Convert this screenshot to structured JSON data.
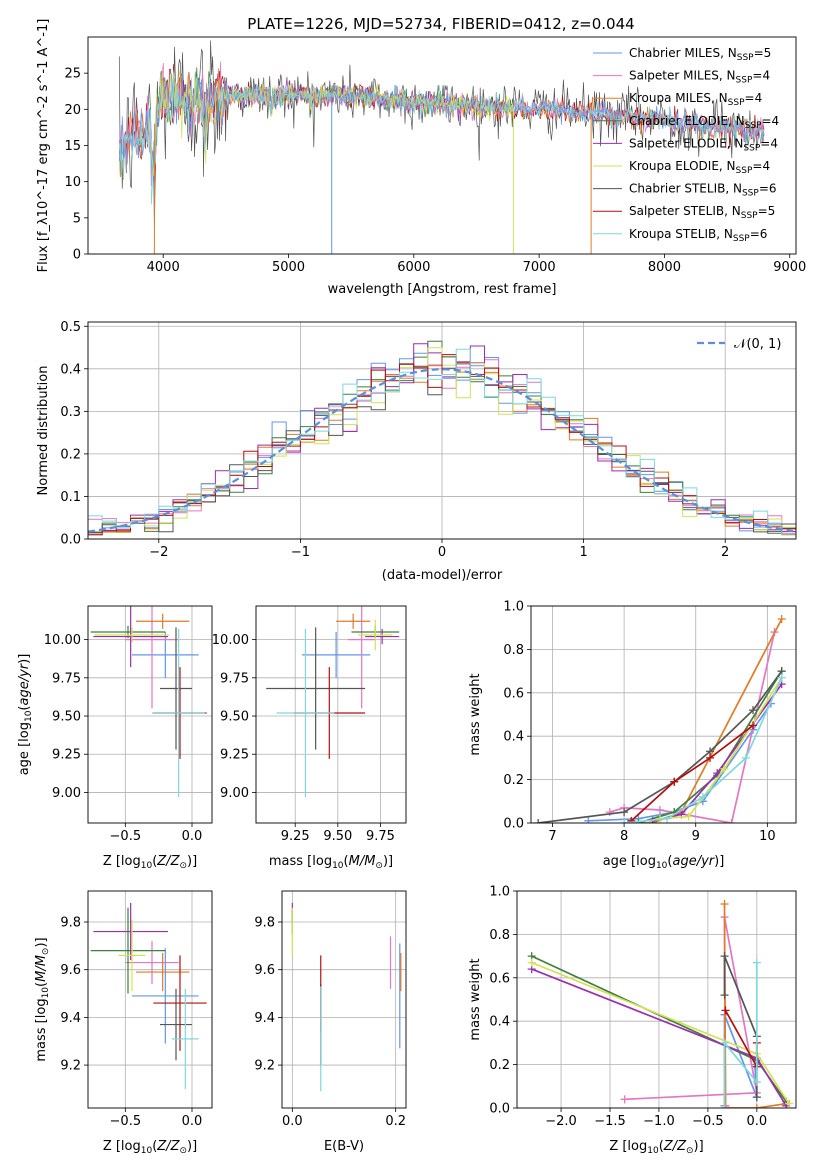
{
  "figure_title": "PLATE=1226, MJD=52734, FIBERID=0412, z=0.044",
  "colors": {
    "Chabrier MILES": "#6495ed",
    "Salpeter MILES": "#e377c2",
    "Kroupa MILES": "#e07b28",
    "Chabrier ELODIE": "#3f7f3f",
    "Salpeter ELODIE": "#9b2fae",
    "Kroupa ELODIE": "#d4e157",
    "Chabrier STELIB": "#555555",
    "Salpeter STELIB": "#b31010",
    "Kroupa STELIB": "#7fd8dc"
  },
  "chart_data": [
    {
      "id": "spectrum",
      "type": "line",
      "xlabel": "wavelength [Angstrom, rest frame]",
      "ylabel": "Flux [f_λ10^-17 erg cm^-2 s^-1 A^-1]",
      "xlim": [
        3400,
        9050
      ],
      "ylim": [
        0,
        30
      ],
      "xticks": [
        4000,
        5000,
        6000,
        7000,
        8000,
        9000
      ],
      "yticks": [
        0,
        5,
        10,
        15,
        20,
        25
      ],
      "grid": false,
      "legend_position": "top-right",
      "legend": [
        {
          "name": "Chabrier MILES",
          "label": "Chabrier MILES, N",
          "sub": "SSP",
          "suffix": "=5"
        },
        {
          "name": "Salpeter MILES",
          "label": "Salpeter MILES, N",
          "sub": "SSP",
          "suffix": "=4"
        },
        {
          "name": "Kroupa MILES",
          "label": "Kroupa MILES, N",
          "sub": "SSP",
          "suffix": "=4"
        },
        {
          "name": "Chabrier ELODIE",
          "label": "Chabrier ELODIE, N",
          "sub": "SSP",
          "suffix": "=4"
        },
        {
          "name": "Salpeter ELODIE",
          "label": "Salpeter ELODIE, N",
          "sub": "SSP",
          "suffix": "=4"
        },
        {
          "name": "Kroupa ELODIE",
          "label": "Kroupa ELODIE, N",
          "sub": "SSP",
          "suffix": "=4"
        },
        {
          "name": "Chabrier STELIB",
          "label": "Chabrier STELIB, N",
          "sub": "SSP",
          "suffix": "=6"
        },
        {
          "name": "Salpeter STELIB",
          "label": "Salpeter STELIB, N",
          "sub": "SSP",
          "suffix": "=5"
        },
        {
          "name": "Kroupa STELIB",
          "label": "Kroupa STELIB, N",
          "sub": "SSP",
          "suffix": "=6"
        }
      ],
      "data_envelope": {
        "wavelength": [
          3650,
          3800,
          3930,
          4000,
          4300,
          4500,
          5000,
          5500,
          6000,
          6500,
          7000,
          7400,
          8000,
          8500,
          8800
        ],
        "flux": [
          14,
          17,
          18,
          22,
          21,
          22,
          22,
          22,
          21,
          20.5,
          20,
          19.5,
          18.5,
          17.5,
          17
        ]
      }
    },
    {
      "id": "residuals",
      "type": "histogram",
      "xlabel": "(data-model)/error",
      "ylabel": "Normed distribution",
      "xlim": [
        -2.5,
        2.5
      ],
      "ylim": [
        0,
        0.51
      ],
      "xticks": [
        -2,
        -1,
        0,
        1,
        2
      ],
      "yticks": [
        0.0,
        0.1,
        0.2,
        0.3,
        0.4,
        0.5
      ],
      "grid": true,
      "legend_position": "top-right",
      "legend": [
        {
          "name": "N(0,1)",
          "label": "𝒩(0, 1)"
        }
      ],
      "bin_width": 0.1
    },
    {
      "id": "age_vs_Z",
      "type": "errorbar",
      "xlabel": "Z [log10(Z/Z⊙)]",
      "ylabel": "age [log10(age/yr)]",
      "xlim": [
        -0.78,
        0.15
      ],
      "ylim": [
        8.8,
        10.22
      ],
      "xticks": [
        -0.5,
        0.0
      ],
      "yticks": [
        9.0,
        9.25,
        9.5,
        9.75,
        10.0
      ],
      "grid": true,
      "points": [
        {
          "series": "Chabrier MILES",
          "x": -0.2,
          "y": 9.9,
          "xerr": 0.25,
          "yerr": 0.15
        },
        {
          "series": "Salpeter MILES",
          "x": -0.3,
          "y": 10.0,
          "xerr": 0.2,
          "yerr": 0.45
        },
        {
          "series": "Kroupa MILES",
          "x": -0.22,
          "y": 10.12,
          "xerr": 0.2,
          "yerr": 0.05
        },
        {
          "series": "Chabrier ELODIE",
          "x": -0.48,
          "y": 10.05,
          "xerr": 0.28,
          "yerr": 0.04
        },
        {
          "series": "Salpeter ELODIE",
          "x": -0.46,
          "y": 10.02,
          "xerr": 0.28,
          "yerr": 0.2
        },
        {
          "series": "Kroupa ELODIE",
          "x": -0.45,
          "y": 10.03,
          "xerr": 0.28,
          "yerr": 0.05
        },
        {
          "series": "Chabrier STELIB",
          "x": -0.12,
          "y": 9.68,
          "xerr": 0.12,
          "yerr": 0.4
        },
        {
          "series": "Salpeter STELIB",
          "x": -0.09,
          "y": 9.52,
          "xerr": 0.2,
          "yerr": 0.3
        },
        {
          "series": "Kroupa STELIB",
          "x": -0.1,
          "y": 9.52,
          "xerr": 0.2,
          "yerr": 0.55
        }
      ]
    },
    {
      "id": "age_vs_mass",
      "type": "errorbar",
      "xlabel": "mass [log10(M/M⊙)]",
      "ylabel": "",
      "xlim": [
        9.02,
        9.9
      ],
      "ylim": [
        8.8,
        10.22
      ],
      "xticks": [
        9.25,
        9.5,
        9.75
      ],
      "yticks": [
        9.0,
        9.25,
        9.5,
        9.75,
        10.0
      ],
      "grid": true,
      "points": [
        {
          "series": "Chabrier MILES",
          "x": 9.49,
          "y": 9.9,
          "xerr": 0.2,
          "yerr": 0.15
        },
        {
          "series": "Salpeter MILES",
          "x": 9.64,
          "y": 10.0,
          "xerr": 0.08,
          "yerr": 0.45
        },
        {
          "series": "Kroupa MILES",
          "x": 9.59,
          "y": 10.12,
          "xerr": 0.1,
          "yerr": 0.05
        },
        {
          "series": "Chabrier ELODIE",
          "x": 9.72,
          "y": 10.05,
          "xerr": 0.14,
          "yerr": 0.04
        },
        {
          "series": "Salpeter ELODIE",
          "x": 9.76,
          "y": 10.02,
          "xerr": 0.1,
          "yerr": 0.05
        },
        {
          "series": "Kroupa ELODIE",
          "x": 9.72,
          "y": 10.03,
          "xerr": 0.1,
          "yerr": 0.1
        },
        {
          "series": "Chabrier STELIB",
          "x": 9.37,
          "y": 9.68,
          "xerr": 0.29,
          "yerr": 0.4
        },
        {
          "series": "Salpeter STELIB",
          "x": 9.45,
          "y": 9.52,
          "xerr": 0.21,
          "yerr": 0.3
        },
        {
          "series": "Kroupa STELIB",
          "x": 9.31,
          "y": 9.52,
          "xerr": 0.17,
          "yerr": 0.55
        }
      ]
    },
    {
      "id": "weight_vs_age",
      "type": "line",
      "xlabel": "age [log10(age/yr)]",
      "ylabel": "mass weight",
      "xlim": [
        6.7,
        10.4
      ],
      "ylim": [
        0,
        1
      ],
      "xticks": [
        7,
        8,
        9,
        10
      ],
      "yticks": [
        0.0,
        0.2,
        0.4,
        0.6,
        0.8,
        1.0
      ],
      "grid": true,
      "series": [
        {
          "name": "Chabrier MILES",
          "x": [
            7.5,
            8.2,
            8.7,
            9.1,
            9.8,
            10.05
          ],
          "y": [
            0.01,
            0.02,
            0.05,
            0.1,
            0.43,
            0.55
          ]
        },
        {
          "name": "Salpeter MILES",
          "x": [
            7.8,
            8.0,
            8.5,
            9.5,
            10.1
          ],
          "y": [
            0.05,
            0.07,
            0.06,
            0.0,
            0.88
          ]
        },
        {
          "name": "Kroupa MILES",
          "x": [
            8.0,
            8.4,
            8.8,
            10.2
          ],
          "y": [
            0.0,
            0.0,
            0.05,
            0.94
          ]
        },
        {
          "name": "Chabrier ELODIE",
          "x": [
            8.2,
            8.7,
            9.3,
            10.2
          ],
          "y": [
            0.0,
            0.05,
            0.22,
            0.7
          ]
        },
        {
          "name": "Salpeter ELODIE",
          "x": [
            8.4,
            8.8,
            9.3,
            10.2
          ],
          "y": [
            0.01,
            0.04,
            0.23,
            0.64
          ]
        },
        {
          "name": "Kroupa ELODIE",
          "x": [
            8.5,
            8.9,
            9.4,
            10.2
          ],
          "y": [
            0.02,
            0.03,
            0.25,
            0.67
          ]
        },
        {
          "name": "Chabrier STELIB",
          "x": [
            6.8,
            8.0,
            8.7,
            9.2,
            9.8,
            10.2
          ],
          "y": [
            0.0,
            0.05,
            0.19,
            0.33,
            0.52,
            0.7
          ]
        },
        {
          "name": "Salpeter STELIB",
          "x": [
            8.1,
            8.7,
            9.2,
            9.8
          ],
          "y": [
            0.01,
            0.19,
            0.3,
            0.45
          ]
        },
        {
          "name": "Kroupa STELIB",
          "x": [
            8.0,
            8.6,
            9.1,
            9.7,
            10.2
          ],
          "y": [
            0.0,
            0.02,
            0.12,
            0.3,
            0.67
          ]
        }
      ]
    },
    {
      "id": "mass_vs_Z",
      "type": "errorbar",
      "xlabel": "Z [log10(Z/Z⊙)]",
      "ylabel": "mass [log10(M/M⊙)]",
      "xlim": [
        -0.78,
        0.15
      ],
      "ylim": [
        9.02,
        9.93
      ],
      "xticks": [
        -0.5,
        0.0
      ],
      "yticks": [
        9.2,
        9.4,
        9.6,
        9.8
      ],
      "grid": true,
      "points": [
        {
          "series": "Chabrier MILES",
          "x": -0.2,
          "y": 9.49,
          "xerr": 0.25,
          "yerr": 0.2
        },
        {
          "series": "Salpeter MILES",
          "x": -0.3,
          "y": 9.63,
          "xerr": 0.2,
          "yerr": 0.09
        },
        {
          "series": "Kroupa MILES",
          "x": -0.22,
          "y": 9.59,
          "xerr": 0.2,
          "yerr": 0.08
        },
        {
          "series": "Chabrier ELODIE",
          "x": -0.48,
          "y": 9.68,
          "xerr": 0.28,
          "yerr": 0.18
        },
        {
          "series": "Salpeter ELODIE",
          "x": -0.46,
          "y": 9.76,
          "xerr": 0.28,
          "yerr": 0.12
        },
        {
          "series": "Kroupa ELODIE",
          "x": -0.45,
          "y": 9.66,
          "xerr": 0.1,
          "yerr": 0.15
        },
        {
          "series": "Chabrier STELIB",
          "x": -0.12,
          "y": 9.37,
          "xerr": 0.12,
          "yerr": 0.15
        },
        {
          "series": "Salpeter STELIB",
          "x": -0.09,
          "y": 9.46,
          "xerr": 0.2,
          "yerr": 0.2
        },
        {
          "series": "Kroupa STELIB",
          "x": -0.05,
          "y": 9.31,
          "xerr": 0.1,
          "yerr": 0.21
        }
      ]
    },
    {
      "id": "mass_vs_EBV",
      "type": "errorbar",
      "xlabel": "E(B-V)",
      "ylabel": "",
      "xlim": [
        -0.02,
        0.22
      ],
      "ylim": [
        9.02,
        9.93
      ],
      "xticks": [
        0.0,
        0.2
      ],
      "yticks": [
        9.2,
        9.4,
        9.6,
        9.8
      ],
      "grid": true,
      "points": [
        {
          "series": "Chabrier MILES",
          "x": 0.208,
          "y": 9.49,
          "xerr": 0,
          "yerr": 0.22
        },
        {
          "series": "Salpeter MILES",
          "x": 0.19,
          "y": 9.63,
          "xerr": 0,
          "yerr": 0.11
        },
        {
          "series": "Kroupa MILES",
          "x": 0.21,
          "y": 9.59,
          "xerr": 0,
          "yerr": 0.08
        },
        {
          "series": "Chabrier ELODIE",
          "x": 0.0,
          "y": 9.8,
          "xerr": 0,
          "yerr": 0.05
        },
        {
          "series": "Salpeter ELODIE",
          "x": 0.0,
          "y": 9.84,
          "xerr": 0,
          "yerr": 0.04
        },
        {
          "series": "Kroupa ELODIE",
          "x": 0.0,
          "y": 9.76,
          "xerr": 0,
          "yerr": 0.1
        },
        {
          "series": "Chabrier STELIB",
          "x": 0.055,
          "y": 9.37,
          "xerr": 0,
          "yerr": 0.17
        },
        {
          "series": "Salpeter STELIB",
          "x": 0.055,
          "y": 9.5,
          "xerr": 0,
          "yerr": 0.16
        },
        {
          "series": "Kroupa STELIB",
          "x": 0.055,
          "y": 9.31,
          "xerr": 0,
          "yerr": 0.22
        }
      ]
    },
    {
      "id": "weight_vs_Z",
      "type": "line",
      "xlabel": "Z [log10(Z/Z⊙)]",
      "ylabel": "mass weight",
      "xlim": [
        -2.45,
        0.4
      ],
      "ylim": [
        0,
        1
      ],
      "xticks": [
        -2.0,
        -1.5,
        -1.0,
        -0.5,
        0.0
      ],
      "yticks": [
        0.0,
        0.2,
        0.4,
        0.6,
        0.8,
        1.0
      ],
      "grid": true,
      "series": [
        {
          "name": "Chabrier MILES",
          "x": [
            -0.33,
            -0.33,
            0.0,
            -0.02
          ],
          "y": [
            0.01,
            0.43,
            0.05,
            0.2
          ]
        },
        {
          "name": "Salpeter MILES",
          "x": [
            -1.35,
            0.0,
            -0.33,
            -0.32
          ],
          "y": [
            0.04,
            0.07,
            0.88,
            0.01
          ]
        },
        {
          "name": "Kroupa MILES",
          "x": [
            -0.33,
            -0.32,
            0.0,
            0.3
          ],
          "y": [
            0.94,
            0.0,
            0.0,
            0.02
          ]
        },
        {
          "name": "Chabrier ELODIE",
          "x": [
            -2.3,
            0.0,
            0.3
          ],
          "y": [
            0.7,
            0.22,
            0.03
          ]
        },
        {
          "name": "Salpeter ELODIE",
          "x": [
            -2.3,
            0.0,
            0.3
          ],
          "y": [
            0.64,
            0.23,
            0.01
          ]
        },
        {
          "name": "Kroupa ELODIE",
          "x": [
            -2.3,
            0.0,
            0.33
          ],
          "y": [
            0.67,
            0.25,
            0.02
          ]
        },
        {
          "name": "Chabrier STELIB",
          "x": [
            -0.33,
            -0.33,
            0.0,
            0.0
          ],
          "y": [
            0.52,
            0.7,
            0.33,
            0.05
          ]
        },
        {
          "name": "Salpeter STELIB",
          "x": [
            -0.32,
            0.0,
            0.0
          ],
          "y": [
            0.45,
            0.19,
            0.3
          ]
        },
        {
          "name": "Kroupa STELIB",
          "x": [
            -0.33,
            -0.33,
            0.0,
            0.0
          ],
          "y": [
            0.0,
            0.3,
            0.12,
            0.67
          ]
        }
      ]
    }
  ]
}
